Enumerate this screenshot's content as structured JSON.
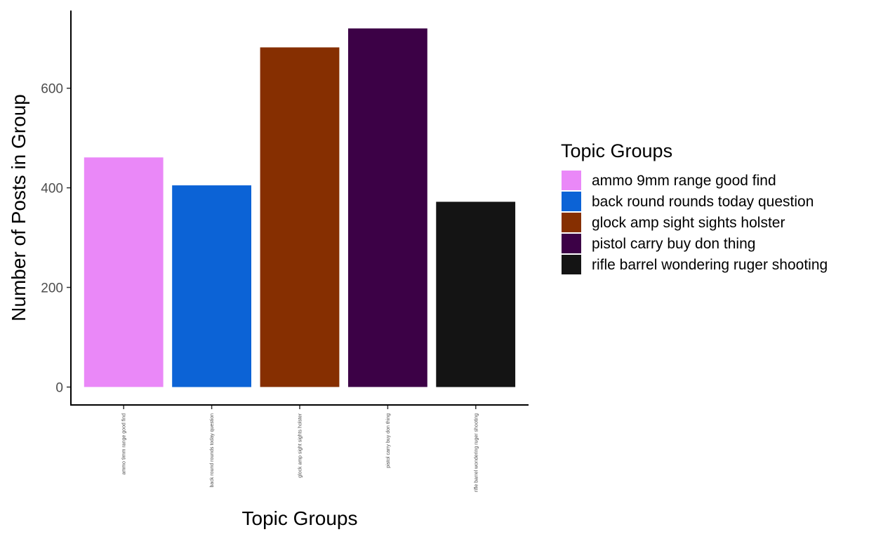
{
  "chart_data": {
    "type": "bar",
    "categories": [
      "ammo 9mm range good find",
      "back round rounds today question",
      "glock amp sight sights holster",
      "pistol carry buy don thing",
      "rifle barrel wondering ruger shooting"
    ],
    "values": [
      461,
      405,
      682,
      720,
      372
    ],
    "colors": [
      "#ea88f8",
      "#0c63d6",
      "#862f01",
      "#3c0146",
      "#141414"
    ],
    "xlabel": "Topic Groups",
    "ylabel": "Number of Posts in Group",
    "yticks": [
      0,
      200,
      400,
      600
    ],
    "ylim": [
      -36,
      756
    ],
    "grid": false,
    "legend": {
      "title": "Topic Groups",
      "position": "right"
    }
  }
}
